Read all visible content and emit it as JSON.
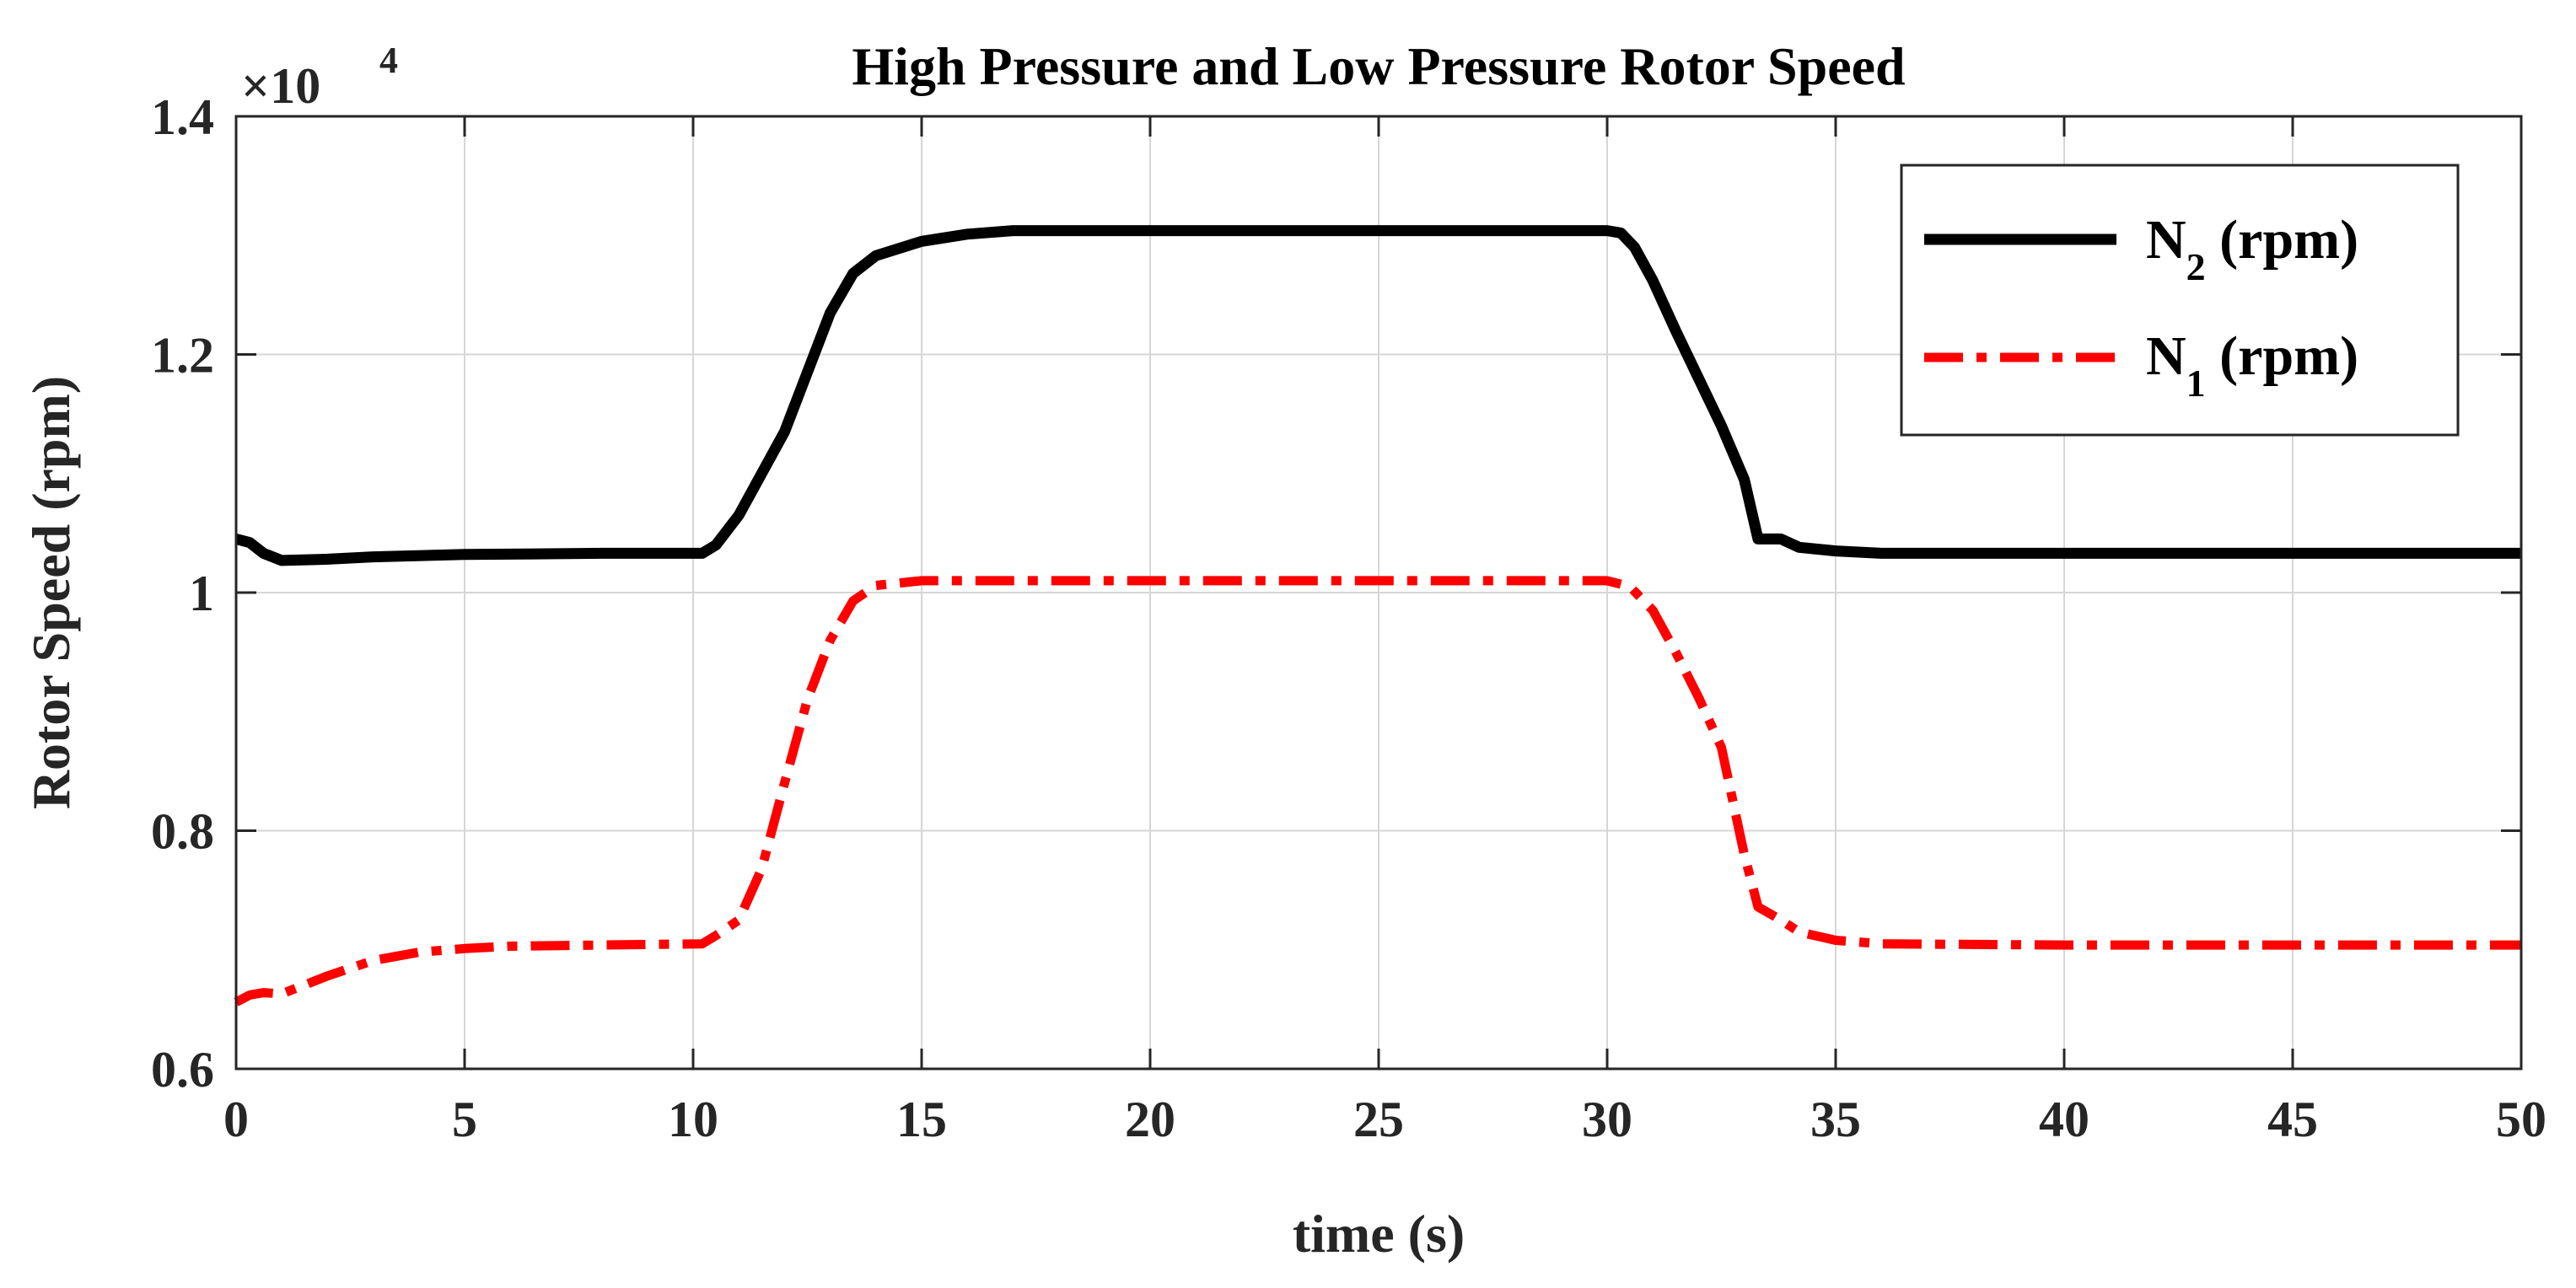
{
  "chart_data": {
    "type": "line",
    "title": "High Pressure and Low Pressure Rotor Speed",
    "xlabel": "time (s)",
    "ylabel": "Rotor Speed (rpm)",
    "xlim": [
      0,
      50
    ],
    "ylim": [
      0.6,
      1.4
    ],
    "x_ticks": [
      0,
      5,
      10,
      15,
      20,
      25,
      30,
      35,
      40,
      45,
      50
    ],
    "y_ticks": [
      0.6,
      0.8,
      1.0,
      1.2,
      1.4
    ],
    "x_tick_labels": [
      "0",
      "5",
      "10",
      "15",
      "20",
      "25",
      "30",
      "35",
      "40",
      "45",
      "50"
    ],
    "y_tick_labels": [
      "0.6",
      "0.8",
      "1",
      "1.2",
      "1.4"
    ],
    "y_multiplier": {
      "base": "×10",
      "exponent": "4"
    },
    "grid": true,
    "legend_position": "top-right",
    "series": [
      {
        "name": "N2 (rpm)",
        "legend_main": "N",
        "legend_sub": "2",
        "legend_suffix": " (rpm)",
        "color": "#000000",
        "style": "solid",
        "points": [
          [
            0,
            1.045
          ],
          [
            0.3,
            1.042
          ],
          [
            0.6,
            1.033
          ],
          [
            1.0,
            1.027
          ],
          [
            2,
            1.028
          ],
          [
            3,
            1.03
          ],
          [
            5,
            1.032
          ],
          [
            8,
            1.033
          ],
          [
            10.2,
            1.033
          ],
          [
            10.5,
            1.04
          ],
          [
            11,
            1.065
          ],
          [
            11.5,
            1.1
          ],
          [
            12,
            1.135
          ],
          [
            12.5,
            1.185
          ],
          [
            13,
            1.235
          ],
          [
            13.5,
            1.268
          ],
          [
            14,
            1.283
          ],
          [
            15,
            1.295
          ],
          [
            16,
            1.301
          ],
          [
            17,
            1.304
          ],
          [
            20,
            1.304
          ],
          [
            25,
            1.304
          ],
          [
            30,
            1.304
          ],
          [
            30.3,
            1.302
          ],
          [
            30.6,
            1.29
          ],
          [
            31,
            1.262
          ],
          [
            31.5,
            1.22
          ],
          [
            32,
            1.18
          ],
          [
            32.5,
            1.14
          ],
          [
            33,
            1.095
          ],
          [
            33.3,
            1.045
          ],
          [
            33.8,
            1.045
          ],
          [
            34.2,
            1.038
          ],
          [
            35,
            1.035
          ],
          [
            36,
            1.033
          ],
          [
            40,
            1.033
          ],
          [
            45,
            1.033
          ],
          [
            50,
            1.033
          ]
        ]
      },
      {
        "name": "N1 (rpm)",
        "legend_main": "N",
        "legend_sub": "1",
        "legend_suffix": " (rpm)",
        "color": "#ff0000",
        "style": "dash-dot",
        "points": [
          [
            0,
            0.656
          ],
          [
            0.3,
            0.662
          ],
          [
            0.6,
            0.664
          ],
          [
            1.0,
            0.663
          ],
          [
            2,
            0.678
          ],
          [
            3,
            0.691
          ],
          [
            4,
            0.698
          ],
          [
            5,
            0.701
          ],
          [
            6,
            0.703
          ],
          [
            8,
            0.704
          ],
          [
            10.2,
            0.705
          ],
          [
            10.5,
            0.712
          ],
          [
            11,
            0.725
          ],
          [
            11.5,
            0.768
          ],
          [
            12,
            0.84
          ],
          [
            12.5,
            0.91
          ],
          [
            13,
            0.96
          ],
          [
            13.5,
            0.993
          ],
          [
            14,
            1.006
          ],
          [
            15,
            1.01
          ],
          [
            20,
            1.01
          ],
          [
            25,
            1.01
          ],
          [
            30,
            1.01
          ],
          [
            30.5,
            1.005
          ],
          [
            31,
            0.985
          ],
          [
            31.5,
            0.95
          ],
          [
            32,
            0.912
          ],
          [
            32.5,
            0.87
          ],
          [
            33,
            0.78
          ],
          [
            33.3,
            0.736
          ],
          [
            33.8,
            0.725
          ],
          [
            34.2,
            0.715
          ],
          [
            35,
            0.708
          ],
          [
            36,
            0.705
          ],
          [
            40,
            0.704
          ],
          [
            45,
            0.704
          ],
          [
            50,
            0.704
          ]
        ]
      }
    ]
  }
}
